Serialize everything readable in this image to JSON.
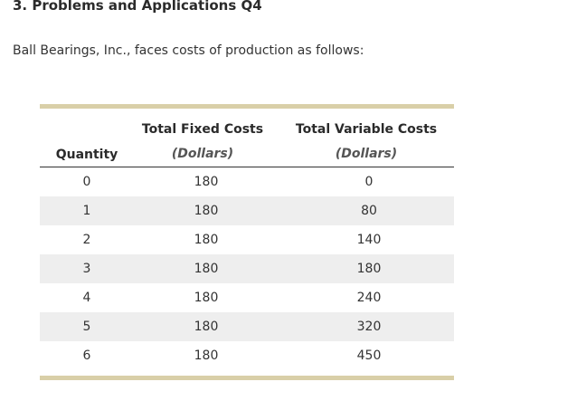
{
  "heading": "3. Problems and Applications Q4",
  "intro": "Ball Bearings, Inc., faces costs of production as follows:",
  "table": {
    "columns": [
      {
        "title": "Quantity",
        "subtitle": ""
      },
      {
        "title": "Total Fixed Costs",
        "subtitle": "(Dollars)"
      },
      {
        "title": "Total Variable Costs",
        "subtitle": "(Dollars)"
      }
    ],
    "rows": [
      [
        "0",
        "180",
        "0"
      ],
      [
        "1",
        "180",
        "80"
      ],
      [
        "2",
        "180",
        "140"
      ],
      [
        "3",
        "180",
        "180"
      ],
      [
        "4",
        "180",
        "240"
      ],
      [
        "5",
        "180",
        "320"
      ],
      [
        "6",
        "180",
        "450"
      ]
    ]
  },
  "colors": {
    "accent_bar": "#d9cfa8",
    "alt_row": "#eeeeee"
  }
}
